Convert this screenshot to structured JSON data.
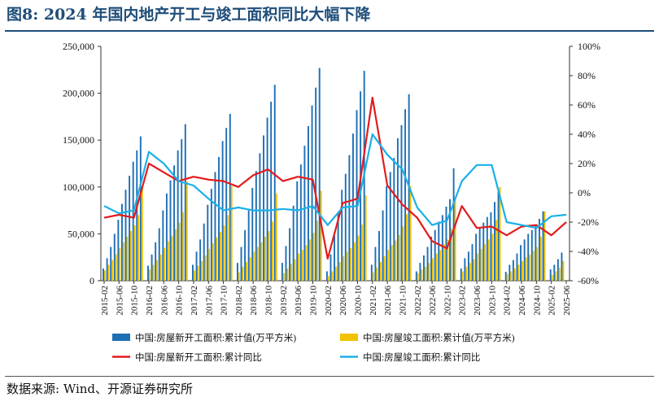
{
  "header": {
    "title": "图8:  2024 年国内地产开工与竣工面积同比大幅下降"
  },
  "footer": {
    "source": "数据来源:  Wind、开源证券研究所"
  },
  "colors": {
    "starts_bar": "#1f6fb5",
    "completions_bar": "#f2c200",
    "starts_yoy": "#e41a1c",
    "completions_yoy": "#1ab0e8",
    "title": "#1f4e79"
  },
  "chart_data": {
    "type": "bar",
    "combo": "clustered bars (left axis) + lines (right axis)",
    "left_axis": {
      "ticks": [
        "0",
        "50,000",
        "100,000",
        "150,000",
        "200,000",
        "250,000"
      ],
      "ylim": [
        0,
        250000
      ]
    },
    "right_axis": {
      "ticks": [
        "-60%",
        "-40%",
        "-20%",
        "0%",
        "20%",
        "40%",
        "60%",
        "80%",
        "100%"
      ],
      "ylim": [
        -60,
        100
      ]
    },
    "x_tick_labels": [
      "2015-02",
      "2015-06",
      "2015-10",
      "2016-02",
      "2016-06",
      "2016-10",
      "2017-02",
      "2017-06",
      "2017-10",
      "2018-02",
      "2018-06",
      "2018-10",
      "2019-02",
      "2019-06",
      "2019-10",
      "2020-02",
      "2020-06",
      "2020-10",
      "2021-02",
      "2021-06",
      "2021-10",
      "2022-02",
      "2022-06",
      "2022-10",
      "2023-02",
      "2023-06",
      "2023-10",
      "2024-02",
      "2024-06",
      "2024-10",
      "2025-02",
      "2025-06"
    ],
    "series": [
      {
        "name": "中国:房屋新开工面积:累计值(万平方米)",
        "type": "bar",
        "axis": "left",
        "by_year": [
          [
            2015,
            [
              13000,
              24000,
              36000,
              50000,
              65000,
              82000,
              97000,
              112000,
              127000,
              139000,
              154000
            ]
          ],
          [
            2016,
            [
              16000,
              28000,
              41000,
              56000,
              75000,
              93000,
              107000,
              123000,
              139000,
              151000,
              167000
            ]
          ],
          [
            2017,
            [
              17000,
              31000,
              44000,
              61000,
              81000,
              98000,
              116000,
              132000,
              149000,
              163000,
              178000
            ]
          ],
          [
            2018,
            [
              19000,
              36000,
              54000,
              75000,
              99000,
              117000,
              136000,
              155000,
              174000,
              191000,
              209000
            ]
          ],
          [
            2019,
            [
              19000,
              37000,
              56000,
              80000,
              106000,
              124000,
              144000,
              165000,
              187000,
              206000,
              227000
            ]
          ],
          [
            2020,
            [
              10000,
              28000,
              48000,
              73000,
              97000,
              114000,
              134000,
              157000,
              182000,
              202000,
              224000
            ]
          ],
          [
            2021,
            [
              17000,
              36000,
              53000,
              75000,
              101000,
              116000,
              131000,
              152000,
              166000,
              183000,
              199000
            ]
          ],
          [
            2022,
            [
              10000,
              19000,
              27000,
              36000,
              47000,
              54000,
              63000,
              70000,
              79000,
              87000,
              120000
            ]
          ],
          [
            2023,
            [
              13000,
              24000,
              31000,
              39000,
              50000,
              56000,
              62000,
              68000,
              73000,
              84000,
              95000
            ]
          ],
          [
            2024,
            [
              9500,
              17000,
              22000,
              29000,
              38000,
              44000,
              50000,
              54000,
              60000,
              66000,
              74000
            ]
          ],
          [
            2025,
            [
              12000,
              17000,
              23000,
              30000
            ]
          ]
        ]
      },
      {
        "name": "中国:房屋竣工面积:累计值(万平方米)",
        "type": "bar",
        "axis": "left",
        "by_year": [
          [
            2015,
            [
              11000,
              17000,
              22000,
              28000,
              35000,
              41000,
              47000,
              53000,
              59000,
              70000,
              100000
            ]
          ],
          [
            2016,
            [
              12000,
              17000,
              22000,
              28000,
              35000,
              42000,
              48000,
              55000,
              62000,
              73000,
              106000
            ]
          ],
          [
            2017,
            [
              11000,
              16000,
              21000,
              27000,
              34000,
              40000,
              46000,
              52000,
              59000,
              70000,
              101000
            ]
          ],
          [
            2018,
            [
              9000,
              15000,
              20000,
              25000,
              31000,
              36000,
              41000,
              47000,
              53000,
              63000,
              93000
            ]
          ],
          [
            2019,
            [
              8000,
              13000,
              18000,
              23000,
              29000,
              33000,
              38000,
              44000,
              51000,
              64000,
              96000
            ]
          ],
          [
            2020,
            [
              5000,
              10000,
              15000,
              20000,
              26000,
              31000,
              35000,
              41000,
              48000,
              60000,
              91000
            ]
          ],
          [
            2021,
            [
              9000,
              14000,
              20000,
              26000,
              33000,
              38000,
              43000,
              49000,
              58000,
              71000,
              101000
            ]
          ],
          [
            2022,
            [
              8000,
              12000,
              15000,
              19000,
              24000,
              29000,
              33000,
              39000,
              44000,
              56000,
              86000
            ]
          ],
          [
            2023,
            [
              10000,
              15000,
              19000,
              23000,
              29000,
              34000,
              39000,
              44000,
              50000,
              65000,
              100000
            ]
          ],
          [
            2024,
            [
              7000,
              10000,
              13000,
              17000,
              21000,
              25000,
              28000,
              32000,
              36000,
              47000,
              74000
            ]
          ],
          [
            2025,
            [
              6000,
              10000,
              14000,
              21000
            ]
          ]
        ]
      },
      {
        "name": "中国:房屋新开工面积:累计同比",
        "type": "line",
        "axis": "right",
        "x": [
          "2015-02",
          "2015-06",
          "2015-10",
          "2016-02",
          "2016-06",
          "2016-10",
          "2017-02",
          "2017-06",
          "2017-10",
          "2018-02",
          "2018-06",
          "2018-10",
          "2019-02",
          "2019-06",
          "2019-10",
          "2020-02",
          "2020-06",
          "2020-10",
          "2021-02",
          "2021-06",
          "2021-10",
          "2022-02",
          "2022-06",
          "2022-10",
          "2023-02",
          "2023-06",
          "2023-10",
          "2024-02",
          "2024-06",
          "2024-10",
          "2025-02",
          "2025-06"
        ],
        "values": [
          -17,
          -15,
          -17,
          20,
          14,
          8,
          11,
          9,
          8,
          4,
          12,
          16,
          8,
          11,
          9,
          -45,
          -7,
          -4,
          65,
          5,
          -8,
          -17,
          -33,
          -38,
          -9,
          -24,
          -23,
          -29,
          -23,
          -22,
          -29,
          -20
        ]
      },
      {
        "name": "中国:房屋竣工面积:累计同比",
        "type": "line",
        "axis": "right",
        "x": [
          "2015-02",
          "2015-06",
          "2015-10",
          "2016-02",
          "2016-06",
          "2016-10",
          "2017-02",
          "2017-06",
          "2017-10",
          "2018-02",
          "2018-06",
          "2018-10",
          "2019-02",
          "2019-06",
          "2019-10",
          "2020-02",
          "2020-06",
          "2020-10",
          "2021-02",
          "2021-06",
          "2021-10",
          "2022-02",
          "2022-06",
          "2022-10",
          "2023-02",
          "2023-06",
          "2023-10",
          "2024-02",
          "2024-06",
          "2024-10",
          "2025-02",
          "2025-06"
        ],
        "values": [
          -9,
          -14,
          -12,
          28,
          20,
          8,
          5,
          -4,
          -12,
          -10,
          -12,
          -12,
          -11,
          -12,
          -9,
          -22,
          -10,
          -9,
          40,
          26,
          16,
          -10,
          -22,
          -19,
          8,
          19,
          19,
          -20,
          -22,
          -24,
          -16,
          -15
        ]
      }
    ]
  }
}
